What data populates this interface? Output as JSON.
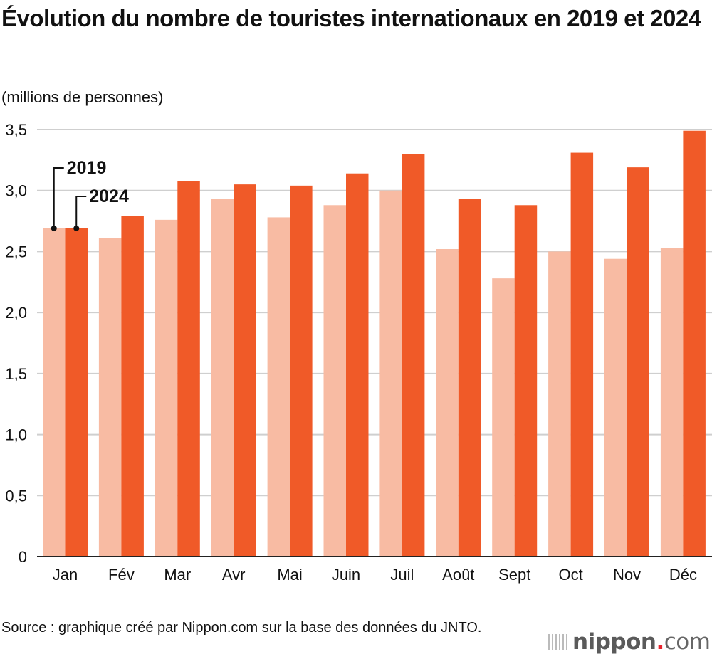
{
  "chart_data": {
    "type": "bar",
    "title": "Évolution du nombre de touristes internationaux en 2019 et 2024",
    "ylabel": "(millions de personnes)",
    "xlabel": "",
    "ylim": [
      0,
      3.5
    ],
    "yticks": [
      "0",
      "0,5",
      "1,0",
      "1,5",
      "2,0",
      "2,5",
      "3,0",
      "3,5"
    ],
    "ytick_values": [
      0,
      0.5,
      1.0,
      1.5,
      2.0,
      2.5,
      3.0,
      3.5
    ],
    "grid": true,
    "categories": [
      "Jan",
      "Fév",
      "Mar",
      "Avr",
      "Mai",
      "Juin",
      "Juil",
      "Août",
      "Sept",
      "Oct",
      "Nov",
      "Déc"
    ],
    "series": [
      {
        "name": "2019",
        "color": "#f8bba3",
        "values": [
          2.69,
          2.61,
          2.76,
          2.93,
          2.78,
          2.88,
          3.0,
          2.52,
          2.28,
          2.5,
          2.44,
          2.53
        ]
      },
      {
        "name": "2024",
        "color": "#f05a28",
        "values": [
          2.69,
          2.79,
          3.08,
          3.05,
          3.04,
          3.14,
          3.3,
          2.93,
          2.88,
          3.31,
          3.19,
          3.49
        ]
      }
    ],
    "legend": "inline-annotations-top-left"
  },
  "source": "Source : graphique créé par Nippon.com sur la base des données du JNTO.",
  "logo": {
    "brand": "nippon",
    "dot": ".",
    "suffix": "com"
  }
}
